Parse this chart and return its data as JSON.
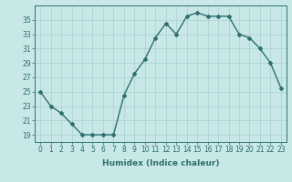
{
  "x": [
    0,
    1,
    2,
    3,
    4,
    5,
    6,
    7,
    8,
    9,
    10,
    11,
    12,
    13,
    14,
    15,
    16,
    17,
    18,
    19,
    20,
    21,
    22,
    23
  ],
  "y": [
    25,
    23,
    22,
    20.5,
    19,
    19,
    19,
    19,
    24.5,
    27.5,
    29.5,
    32.5,
    34.5,
    33,
    35.5,
    36,
    35.5,
    35.5,
    35.5,
    33,
    32.5,
    31,
    29,
    25.5
  ],
  "line_color": "#2d6e6e",
  "marker": "D",
  "markersize": 2,
  "linewidth": 1.0,
  "background_color": "#c8e8e8",
  "grid_color": "#aacece",
  "xlabel": "Humidex (Indice chaleur)",
  "xlim": [
    -0.5,
    23.5
  ],
  "ylim": [
    18,
    37
  ],
  "yticks": [
    19,
    21,
    23,
    25,
    27,
    29,
    31,
    33,
    35
  ],
  "xtick_labels": [
    "0",
    "1",
    "2",
    "3",
    "4",
    "5",
    "6",
    "7",
    "8",
    "9",
    "10",
    "11",
    "12",
    "13",
    "14",
    "15",
    "16",
    "17",
    "18",
    "19",
    "20",
    "21",
    "22",
    "23"
  ],
  "xlabel_fontsize": 6.5,
  "tick_fontsize": 5.5
}
